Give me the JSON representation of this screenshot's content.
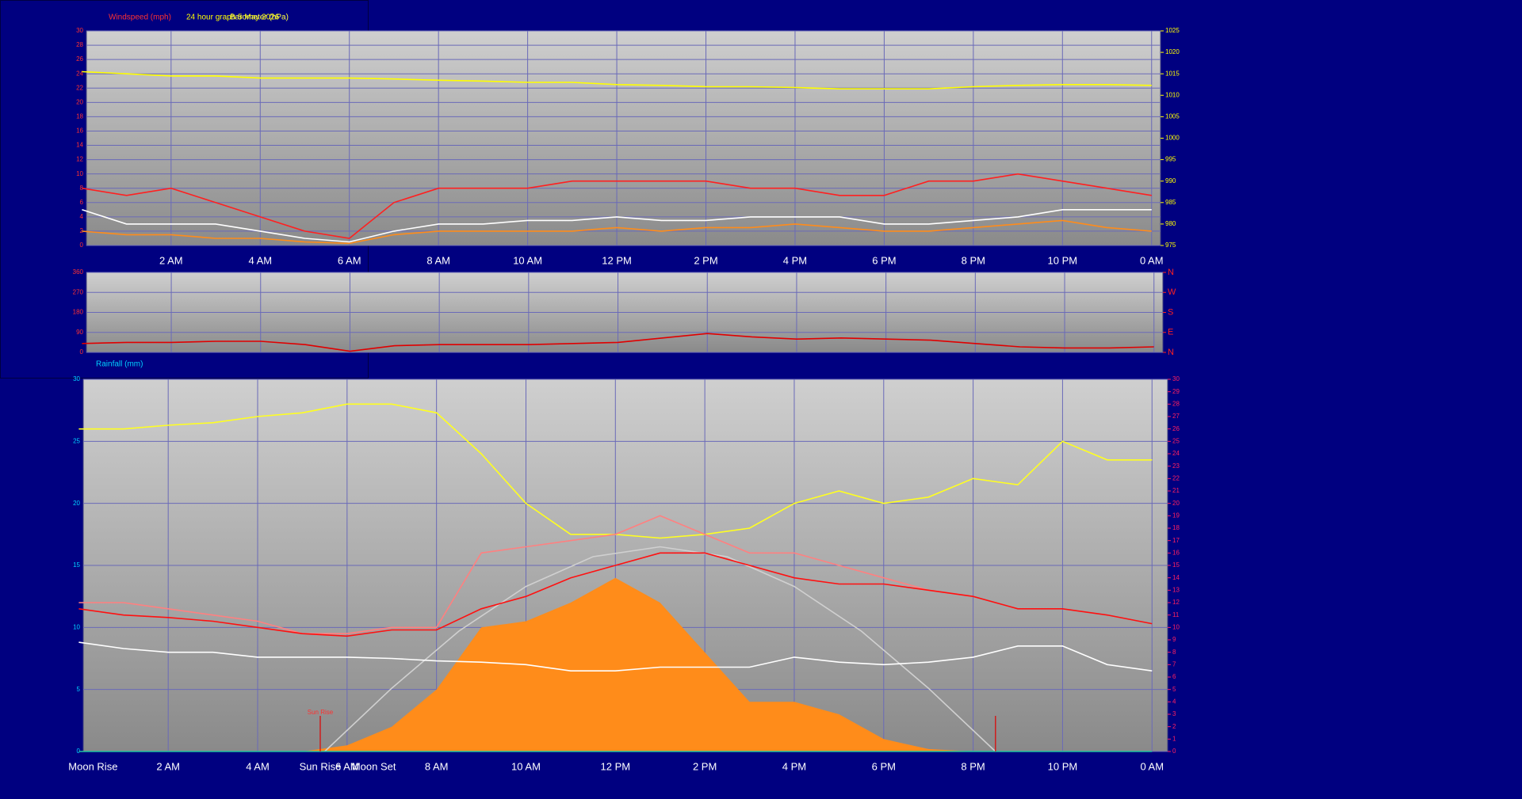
{
  "chart_data": [
    {
      "type": "line",
      "left_label": "Windspeed (mph)",
      "title": "24 hour graph 5 May 2026",
      "right_label": "Barometer (hPa)",
      "x": [
        0,
        1,
        2,
        3,
        4,
        5,
        6,
        7,
        8,
        9,
        10,
        11,
        12,
        13,
        14,
        15,
        16,
        17,
        18,
        19,
        20,
        21,
        22,
        23,
        24
      ],
      "xlim": [
        0.1,
        24.2
      ],
      "xticks": [
        {
          "value": 2,
          "label": "2 AM"
        },
        {
          "value": 4,
          "label": "4 AM"
        },
        {
          "value": 6,
          "label": "6 AM"
        },
        {
          "value": 8,
          "label": "8 AM"
        },
        {
          "value": 10,
          "label": "10 AM"
        },
        {
          "value": 12,
          "label": "12 PM"
        },
        {
          "value": 14,
          "label": "2 PM"
        },
        {
          "value": 16,
          "label": "4 PM"
        },
        {
          "value": 18,
          "label": "6 PM"
        },
        {
          "value": 20,
          "label": "8 PM"
        },
        {
          "value": 22,
          "label": "10 PM"
        },
        {
          "value": 24,
          "label": "0 AM"
        }
      ],
      "ylim": [
        0,
        30
      ],
      "yticks": [
        0,
        2,
        4,
        6,
        8,
        10,
        12,
        14,
        16,
        18,
        20,
        22,
        24,
        26,
        28,
        30
      ],
      "y2lim": [
        975,
        1025
      ],
      "y2ticks": [
        975,
        980,
        985,
        990,
        995,
        1000,
        1005,
        1010,
        1015,
        1020,
        1025
      ],
      "grid": true,
      "series": [
        {
          "color": "#ff2020",
          "values": [
            8,
            7,
            8,
            6,
            4,
            2,
            1,
            6,
            8,
            8,
            8,
            9,
            9,
            9,
            9,
            8,
            8,
            7,
            7,
            9,
            9,
            10,
            9,
            8,
            7
          ]
        },
        {
          "color": "#ff8c1a",
          "values": [
            2,
            1.5,
            1.5,
            1,
            1,
            0.5,
            0.3,
            1.5,
            2,
            2,
            2,
            2,
            2.5,
            2,
            2.5,
            2.5,
            3,
            2.5,
            2,
            2,
            2.5,
            3,
            3.5,
            2.5,
            2
          ]
        },
        {
          "color": "#ffffff",
          "values": [
            5,
            3,
            3,
            3,
            2,
            1,
            0.5,
            2,
            3,
            3,
            3.5,
            3.5,
            4,
            3.5,
            3.5,
            4,
            4,
            4,
            3,
            3,
            3.5,
            4,
            5,
            5,
            5
          ]
        },
        {
          "color": "#ffff00",
          "axis": "y2",
          "values": [
            1015.5,
            1015,
            1014.5,
            1014.5,
            1014,
            1014,
            1014,
            1013.8,
            1013.5,
            1013.3,
            1013,
            1013,
            1012.5,
            1012.3,
            1012,
            1012,
            1011.8,
            1011.5,
            1011.5,
            1011.5,
            1012,
            1012.3,
            1012.5,
            1012.5,
            1012.3
          ]
        }
      ]
    },
    {
      "type": "line",
      "x": [
        0,
        1,
        2,
        3,
        4,
        5,
        6,
        7,
        8,
        9,
        10,
        11,
        12,
        13,
        14,
        15,
        16,
        17,
        18,
        19,
        20,
        21,
        22,
        23,
        24
      ],
      "xlim": [
        0.1,
        24.2
      ],
      "ylim": [
        0,
        360
      ],
      "yticks": [
        0,
        90,
        180,
        270,
        360
      ],
      "y2lim": [
        0,
        360
      ],
      "y2ticks": [
        {
          "value": 0,
          "label": "N"
        },
        {
          "value": 90,
          "label": "E"
        },
        {
          "value": 180,
          "label": "S"
        },
        {
          "value": 270,
          "label": "W"
        },
        {
          "value": 360,
          "label": "N"
        }
      ],
      "grid": true,
      "series": [
        {
          "color": "#e00000",
          "values": [
            40,
            45,
            45,
            50,
            50,
            35,
            5,
            30,
            35,
            35,
            35,
            40,
            45,
            65,
            85,
            70,
            60,
            65,
            60,
            55,
            40,
            25,
            20,
            20,
            25
          ]
        }
      ]
    },
    {
      "type": "line",
      "left_label": "Rainfall (mm)",
      "x": [
        0,
        1,
        2,
        3,
        4,
        5,
        6,
        7,
        8,
        9,
        10,
        11,
        12,
        13,
        14,
        15,
        16,
        17,
        18,
        19,
        20,
        21,
        22,
        23,
        24
      ],
      "xlim": [
        0.1,
        24.35
      ],
      "xticks": [
        {
          "value": 2,
          "label": "2 AM"
        },
        {
          "value": 4,
          "label": "4 AM"
        },
        {
          "value": 6,
          "label": "6 AM"
        },
        {
          "value": 8,
          "label": "8 AM"
        },
        {
          "value": 10,
          "label": "10 AM"
        },
        {
          "value": 12,
          "label": "12 PM"
        },
        {
          "value": 14,
          "label": "2 PM"
        },
        {
          "value": 16,
          "label": "4 PM"
        },
        {
          "value": 18,
          "label": "6 PM"
        },
        {
          "value": 20,
          "label": "8 PM"
        },
        {
          "value": 22,
          "label": "10 PM"
        },
        {
          "value": 24,
          "label": "0 AM"
        }
      ],
      "ylim": [
        0,
        30
      ],
      "yticks": [
        0,
        5,
        10,
        15,
        20,
        25,
        30
      ],
      "y2lim": [
        0,
        30
      ],
      "y2ticks": [
        0,
        1,
        2,
        3,
        4,
        5,
        6,
        7,
        8,
        9,
        10,
        11,
        12,
        13,
        14,
        15,
        16,
        17,
        18,
        19,
        20,
        21,
        22,
        23,
        24,
        25,
        26,
        27,
        28,
        29,
        30
      ],
      "grid": true,
      "series": [
        {
          "color": "#ff8c1a",
          "area": true,
          "values": [
            0,
            0,
            0,
            0,
            0,
            0,
            0.5,
            2,
            5,
            10,
            10.5,
            12,
            14,
            12,
            8,
            4,
            4,
            3,
            1,
            0.2,
            0,
            0,
            0,
            0,
            0
          ]
        },
        {
          "color": "#d0d0d0",
          "x": [
            5.5,
            7,
            8.5,
            10,
            11.5,
            13,
            14.5,
            16,
            17.5,
            19,
            20.5
          ],
          "values": [
            0,
            5.1,
            9.7,
            13.3,
            15.7,
            16.5,
            15.7,
            13.3,
            9.7,
            5.1,
            0
          ]
        },
        {
          "color": "#ffff20",
          "values": [
            26,
            26,
            26.3,
            26.5,
            27,
            27.3,
            28,
            28,
            27.3,
            24,
            20,
            17.5,
            17.5,
            17.2,
            17.5,
            18,
            20,
            21,
            20,
            20.5,
            22,
            21.5,
            25,
            23.5,
            23.5
          ]
        },
        {
          "color": "#ff8080",
          "values": [
            12,
            12,
            11.5,
            11,
            10.5,
            9.5,
            9.5,
            10,
            10,
            16,
            16.5,
            17,
            17.5,
            19,
            17.5,
            16,
            16,
            15,
            14,
            13,
            12.5,
            null,
            null,
            null,
            null
          ]
        },
        {
          "color": "#ff1010",
          "values": [
            11.5,
            11,
            10.8,
            10.5,
            10,
            9.5,
            9.3,
            9.8,
            9.8,
            11.5,
            12.5,
            14,
            15,
            16,
            16,
            15,
            14,
            13.5,
            13.5,
            13,
            12.5,
            11.5,
            11.5,
            11,
            10.3
          ]
        },
        {
          "color": "#ffffff",
          "values": [
            8.8,
            8.3,
            8,
            8,
            7.6,
            7.6,
            7.6,
            7.5,
            7.3,
            7.2,
            7,
            6.5,
            6.5,
            6.8,
            6.8,
            6.8,
            7.6,
            7.2,
            7,
            7.2,
            7.6,
            8.5,
            8.5,
            7,
            6.5
          ]
        },
        {
          "color": "#20c0a0",
          "values": [
            0,
            0,
            0,
            0,
            0,
            0,
            0,
            0,
            0,
            0,
            0,
            0,
            0,
            0,
            0,
            0,
            0,
            0,
            0,
            0,
            0,
            0,
            0,
            0,
            0
          ]
        }
      ],
      "events": [
        {
          "label": "Moon Rise",
          "x": 0
        },
        {
          "label": "Sun Rise",
          "x": 5.4
        },
        {
          "label": "Moon Set",
          "x": 6.6
        }
      ],
      "markers": [
        5.4,
        20.5
      ],
      "annotation": {
        "text": "Sun Rise",
        "x": 5.4
      }
    }
  ]
}
